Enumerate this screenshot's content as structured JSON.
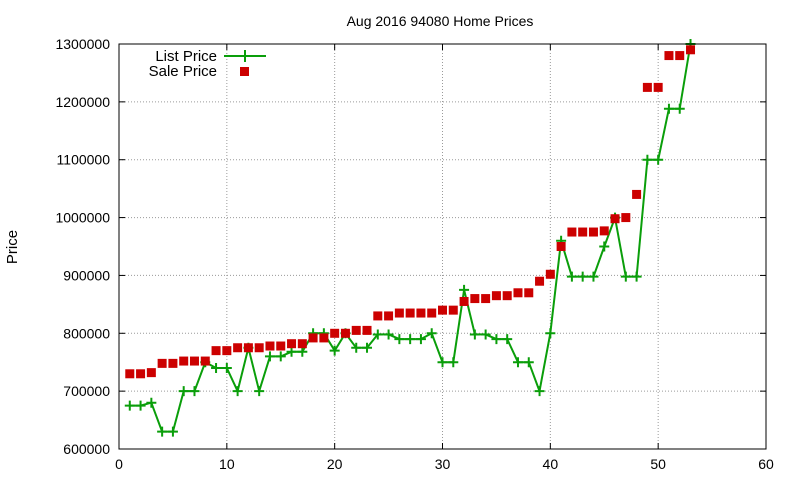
{
  "chart_data": {
    "type": "line",
    "title": "Aug 2016 94080 Home Prices",
    "xlabel": "",
    "ylabel": "Price",
    "xlim": [
      0,
      60
    ],
    "ylim": [
      600000,
      1300000
    ],
    "xticks": [
      "0",
      "10",
      "20",
      "30",
      "40",
      "50",
      "60"
    ],
    "yticks": [
      "600000",
      "700000",
      "800000",
      "900000",
      "1000000",
      "1100000",
      "1200000",
      "1300000"
    ],
    "grid": true,
    "legend_position": "top-left",
    "series": [
      {
        "name": "List Price",
        "style": "line-with-plus-markers",
        "color": "#0a9e0a",
        "x": [
          1,
          2,
          3,
          4,
          5,
          6,
          7,
          8,
          9,
          10,
          11,
          12,
          13,
          14,
          15,
          16,
          17,
          18,
          19,
          20,
          21,
          22,
          23,
          24,
          25,
          26,
          27,
          28,
          29,
          30,
          31,
          32,
          33,
          34,
          35,
          36,
          37,
          38,
          39,
          40,
          41,
          42,
          43,
          44,
          45,
          46,
          47,
          48,
          49,
          50,
          51,
          52,
          53
        ],
        "values": [
          675000,
          675000,
          680000,
          630000,
          630000,
          700000,
          700000,
          750000,
          740000,
          740000,
          700000,
          775000,
          700000,
          760000,
          760000,
          768000,
          768000,
          800000,
          800000,
          770000,
          800000,
          775000,
          775000,
          798000,
          798000,
          790000,
          790000,
          790000,
          800000,
          750000,
          750000,
          875000,
          798000,
          798000,
          790000,
          790000,
          750000,
          750000,
          700000,
          800000,
          960000,
          898000,
          898000,
          898000,
          950000,
          1000000,
          898000,
          898000,
          1100000,
          1100000,
          1188000,
          1188000,
          1300000
        ]
      },
      {
        "name": "Sale Price",
        "style": "square-markers",
        "color": "#cc0000",
        "x": [
          1,
          2,
          3,
          4,
          5,
          6,
          7,
          8,
          9,
          10,
          11,
          12,
          13,
          14,
          15,
          16,
          17,
          18,
          19,
          20,
          21,
          22,
          23,
          24,
          25,
          26,
          27,
          28,
          29,
          30,
          31,
          32,
          33,
          34,
          35,
          36,
          37,
          38,
          39,
          40,
          41,
          42,
          43,
          44,
          45,
          46,
          47,
          48,
          49,
          50,
          51,
          52,
          53
        ],
        "values": [
          730000,
          730000,
          732000,
          748000,
          748000,
          752000,
          752000,
          752000,
          770000,
          770000,
          775000,
          775000,
          775000,
          778000,
          778000,
          782000,
          782000,
          792000,
          792000,
          800000,
          800000,
          805000,
          805000,
          830000,
          830000,
          835000,
          835000,
          835000,
          835000,
          840000,
          840000,
          855000,
          860000,
          860000,
          865000,
          865000,
          870000,
          870000,
          890000,
          902000,
          950000,
          975000,
          975000,
          975000,
          977000,
          998000,
          1000000,
          1040000,
          1225000,
          1225000,
          1280000,
          1280000,
          1290000
        ]
      }
    ]
  }
}
